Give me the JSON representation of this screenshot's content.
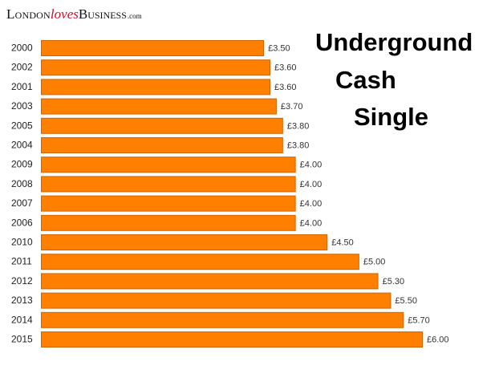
{
  "brand": {
    "part1": "London",
    "part2": "loves",
    "part3": "Business",
    "part4": ".com"
  },
  "title_lines": [
    "Underground",
    "Cash",
    "Single"
  ],
  "chart_data": {
    "type": "bar",
    "orientation": "horizontal",
    "title": "Underground Cash Single",
    "categories": [
      "2000",
      "2002",
      "2001",
      "2003",
      "2005",
      "2004",
      "2009",
      "2008",
      "2007",
      "2006",
      "2010",
      "2011",
      "2012",
      "2013",
      "2014",
      "2015"
    ],
    "values": [
      3.5,
      3.6,
      3.6,
      3.7,
      3.8,
      3.8,
      4.0,
      4.0,
      4.0,
      4.0,
      4.5,
      5.0,
      5.3,
      5.5,
      5.7,
      6.0
    ],
    "value_labels": [
      "£3.50",
      "£3.60",
      "£3.60",
      "£3.70",
      "£3.80",
      "£3.80",
      "£4.00",
      "£4.00",
      "£4.00",
      "£4.00",
      "£4.50",
      "£5.00",
      "£5.30",
      "£5.50",
      "£5.70",
      "£6.00"
    ],
    "xlim": [
      0,
      6.0
    ],
    "grid": false,
    "legend": "none",
    "bar_color": "#ff8000",
    "bar_edge_color": "#d06400"
  }
}
